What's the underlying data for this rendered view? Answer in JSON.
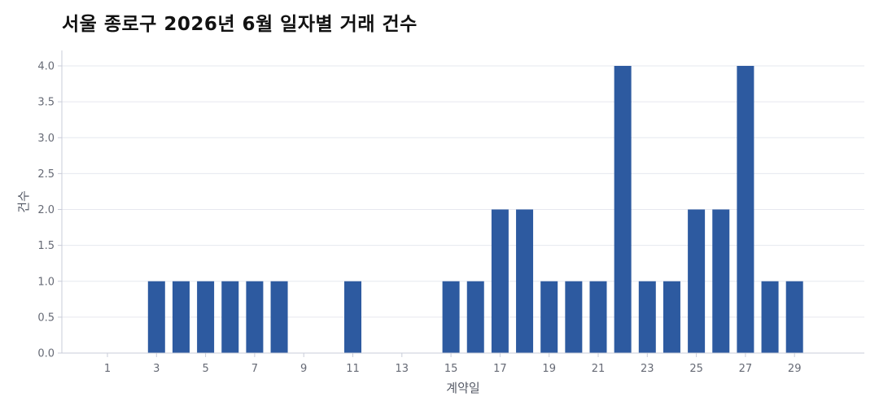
{
  "chart_data": {
    "type": "bar",
    "title": "서울 종로구 2026년 6월 일자별 거래 건수",
    "xlabel": "계약일",
    "ylabel": "건수",
    "x": [
      1,
      2,
      3,
      4,
      5,
      6,
      7,
      8,
      9,
      10,
      11,
      12,
      13,
      14,
      15,
      16,
      17,
      18,
      19,
      20,
      21,
      22,
      23,
      24,
      25,
      26,
      27,
      28,
      29,
      30
    ],
    "values": [
      0,
      0,
      1,
      1,
      1,
      1,
      1,
      1,
      0,
      0,
      1,
      0,
      0,
      0,
      1,
      1,
      2,
      2,
      1,
      1,
      1,
      4,
      1,
      1,
      2,
      2,
      4,
      1,
      1,
      0
    ],
    "xticks": [
      "1",
      "3",
      "5",
      "7",
      "9",
      "11",
      "13",
      "15",
      "17",
      "19",
      "21",
      "23",
      "25",
      "27",
      "29"
    ],
    "yticks": [
      "0.0",
      "0.5",
      "1.0",
      "1.5",
      "2.0",
      "2.5",
      "3.0",
      "3.5",
      "4.0"
    ],
    "ylim": [
      0,
      4
    ],
    "grid": true,
    "bar_color": "#2d5aa0"
  }
}
